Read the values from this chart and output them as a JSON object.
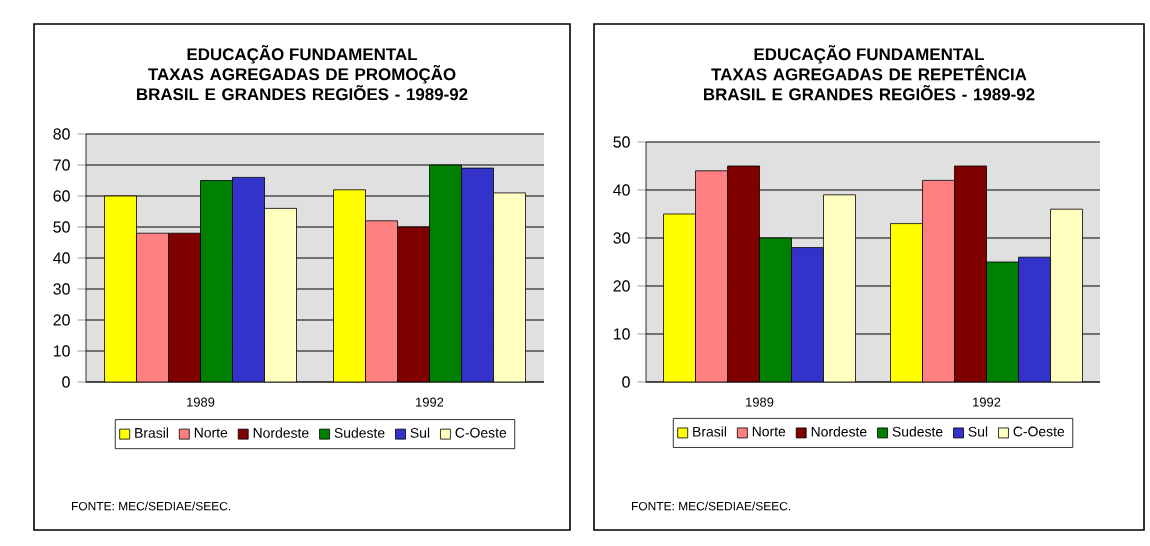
{
  "chart_data": [
    {
      "type": "bar",
      "title": "EDUCAÇÃO FUNDAMENTAL",
      "subtitle": "TAXAS AGREGADAS DE PROMOÇÃO BRASIL E GRANDES REGIÕES - 1989-92",
      "categories": [
        "1989",
        "1992"
      ],
      "ylim": [
        0,
        80
      ],
      "yticks": [
        0,
        10,
        20,
        30,
        40,
        50,
        60,
        70,
        80
      ],
      "grid": "y",
      "legend": "bottom",
      "annotations": [
        "FONTE: MEC/SEDIAE/SEEC."
      ],
      "series": [
        {
          "name": "Brasil",
          "color": "#ffff00",
          "values": [
            60,
            62
          ]
        },
        {
          "name": "Norte",
          "color": "#ff8080",
          "values": [
            48,
            52
          ]
        },
        {
          "name": "Nordeste",
          "color": "#800000",
          "values": [
            48,
            50
          ]
        },
        {
          "name": "Sudeste",
          "color": "#008000",
          "values": [
            65,
            70
          ]
        },
        {
          "name": "Sul",
          "color": "#3333cc",
          "values": [
            66,
            69
          ]
        },
        {
          "name": "C-Oeste",
          "color": "#ffffc0",
          "values": [
            56,
            61
          ]
        }
      ]
    },
    {
      "type": "bar",
      "title": "EDUCAÇÃO FUNDAMENTAL",
      "subtitle": "TAXAS AGREGADAS DE REPETÊNCIA BRASIL E GRANDES REGIÕES - 1989-92",
      "categories": [
        "1989",
        "1992"
      ],
      "ylim": [
        0,
        50
      ],
      "yticks": [
        0,
        10,
        20,
        30,
        40,
        50
      ],
      "grid": "y",
      "legend": "bottom",
      "annotations": [
        "FONTE: MEC/SEDIAE/SEEC."
      ],
      "series": [
        {
          "name": "Brasil",
          "color": "#ffff00",
          "values": [
            35,
            33
          ]
        },
        {
          "name": "Norte",
          "color": "#ff8080",
          "values": [
            44,
            42
          ]
        },
        {
          "name": "Nordeste",
          "color": "#800000",
          "values": [
            45,
            45
          ]
        },
        {
          "name": "Sudeste",
          "color": "#008000",
          "values": [
            30,
            25
          ]
        },
        {
          "name": "Sul",
          "color": "#3333cc",
          "values": [
            28,
            26
          ]
        },
        {
          "name": "C-Oeste",
          "color": "#ffffc0",
          "values": [
            39,
            36
          ]
        }
      ]
    }
  ]
}
